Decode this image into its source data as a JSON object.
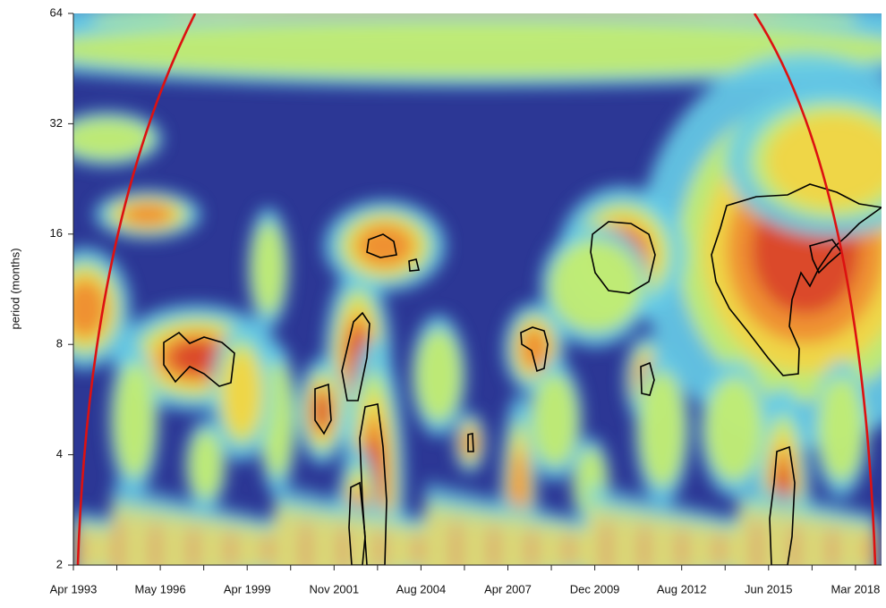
{
  "chart_data": {
    "type": "wavelet",
    "y_label": "period (months)",
    "y_scale": "log",
    "ylim": [
      2,
      64
    ],
    "yticks": [
      2,
      4,
      8,
      16,
      32,
      64
    ],
    "categories": [
      "Apr 1993",
      null,
      "May 1996",
      null,
      "Apr 1999",
      null,
      "Nov 2001",
      null,
      "Aug 2004",
      null,
      "Apr 2007",
      null,
      "Dec 2009",
      null,
      "Aug 2012",
      null,
      "Jun 2015",
      null,
      "Mar 2018"
    ]
  }
}
